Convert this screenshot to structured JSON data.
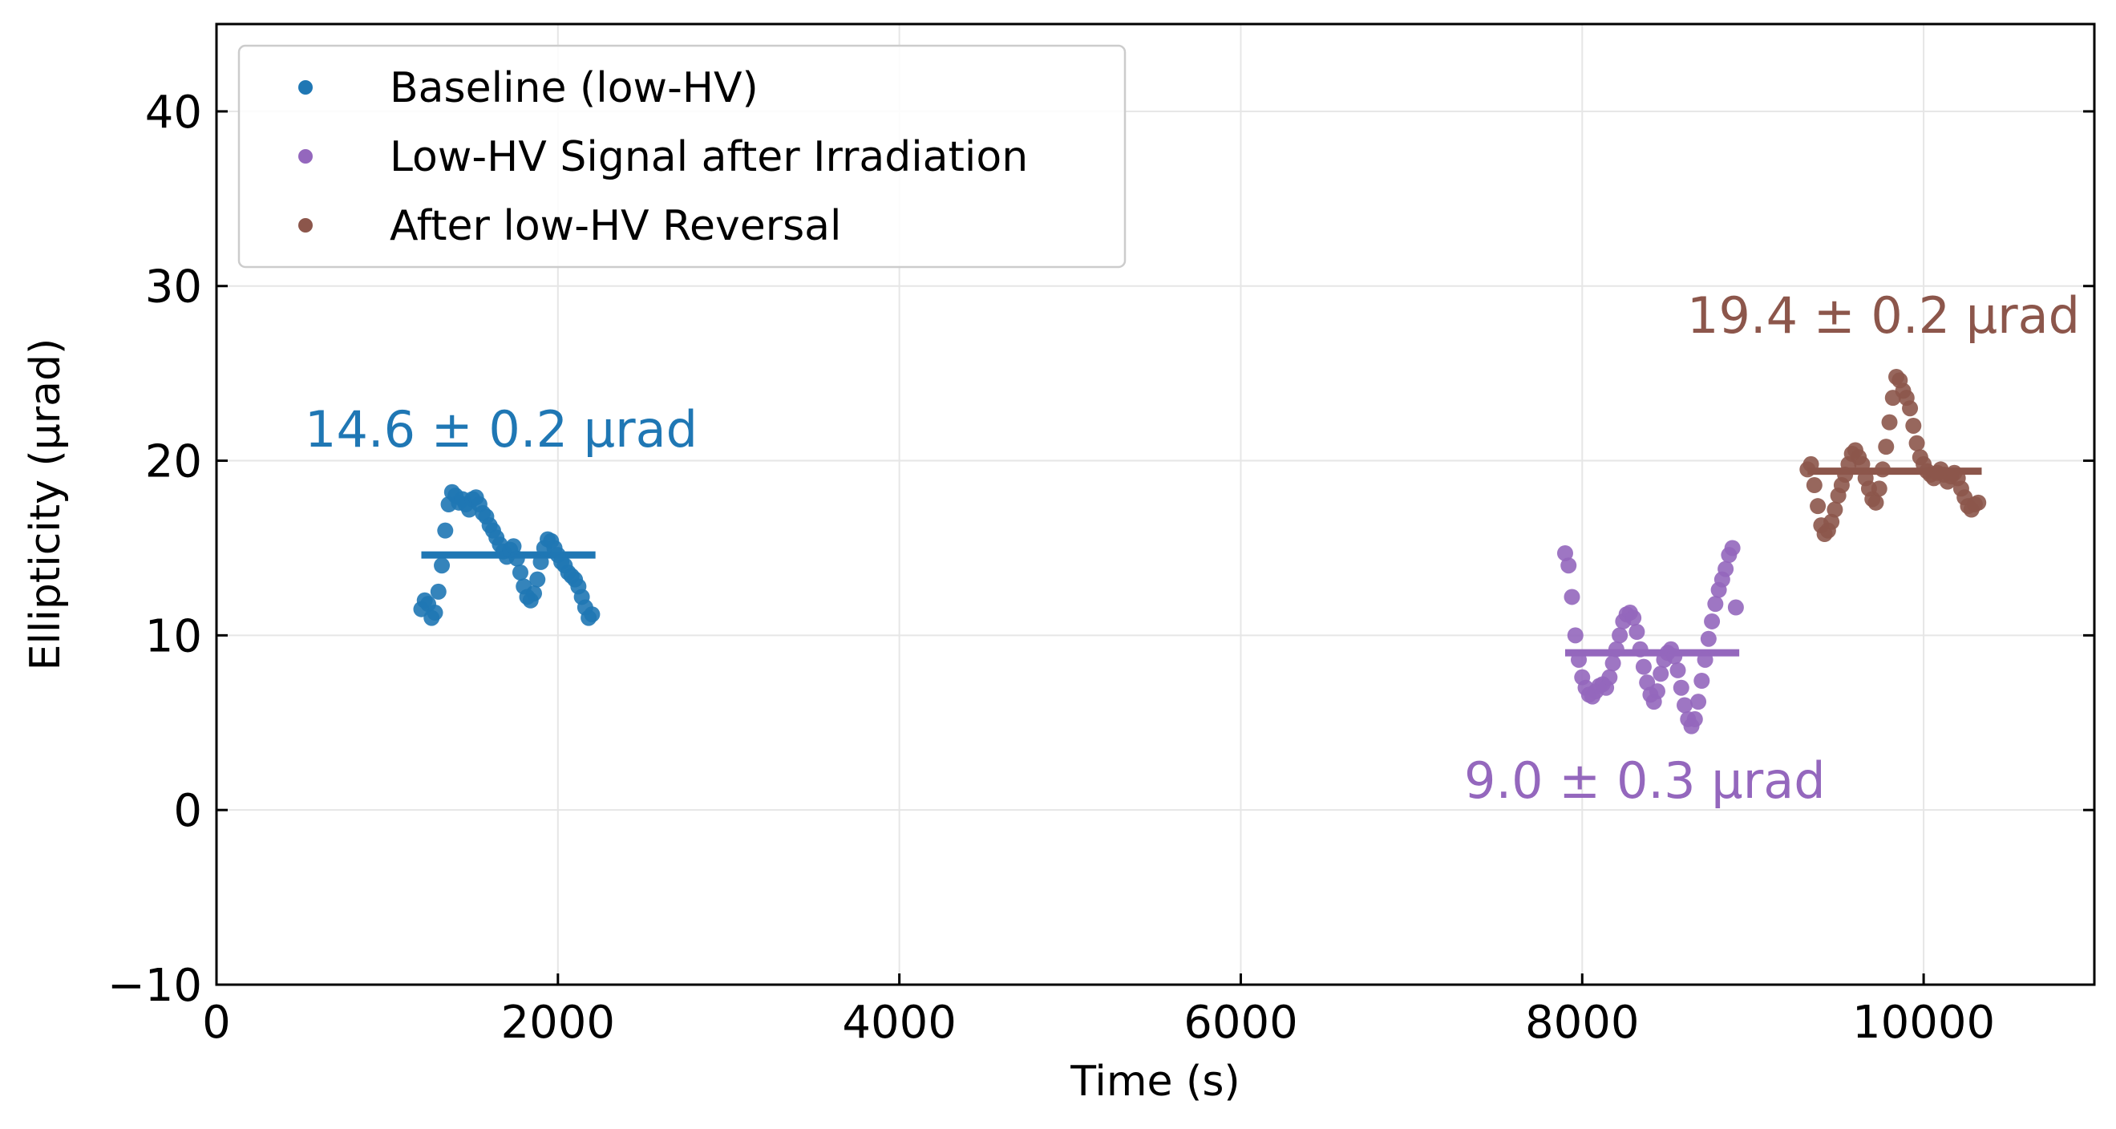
{
  "chart_data": {
    "type": "scatter",
    "xlabel": "Time (s)",
    "ylabel": "Ellipticity (μrad)",
    "xlim": [
      0,
      11000
    ],
    "ylim": [
      -10,
      45
    ],
    "xticks": [
      0,
      2000,
      4000,
      6000,
      8000,
      10000
    ],
    "yticks": [
      -10,
      0,
      10,
      20,
      30,
      40
    ],
    "grid": true,
    "legend_position": "top-left",
    "series": [
      {
        "name": "Baseline (low-HV)",
        "color": "#1f77b4",
        "mean": 14.6,
        "mean_x_range": [
          1200,
          2220
        ],
        "annotation": "14.6 ± 0.2 μrad",
        "x": [
          1200,
          1220,
          1240,
          1260,
          1280,
          1300,
          1320,
          1340,
          1360,
          1380,
          1400,
          1420,
          1440,
          1460,
          1480,
          1500,
          1520,
          1540,
          1560,
          1580,
          1600,
          1620,
          1640,
          1660,
          1680,
          1700,
          1720,
          1740,
          1760,
          1780,
          1800,
          1820,
          1840,
          1860,
          1880,
          1900,
          1920,
          1940,
          1960,
          1980,
          2000,
          2020,
          2040,
          2060,
          2080,
          2100,
          2120,
          2140,
          2160,
          2180,
          2200
        ],
        "y": [
          11.5,
          12.0,
          11.8,
          11.0,
          11.3,
          12.5,
          14.0,
          16.0,
          17.5,
          18.2,
          18.0,
          17.6,
          17.8,
          17.5,
          17.2,
          17.8,
          17.9,
          17.5,
          17.0,
          16.8,
          16.3,
          16.0,
          15.6,
          15.2,
          14.8,
          14.5,
          14.9,
          15.1,
          14.4,
          13.6,
          12.8,
          12.2,
          12.0,
          12.4,
          13.2,
          14.2,
          15.0,
          15.5,
          15.4,
          15.0,
          14.6,
          14.2,
          14.0,
          13.6,
          13.4,
          13.2,
          12.8,
          12.2,
          11.6,
          11.0,
          11.2
        ]
      },
      {
        "name": "Low-HV Signal after Irradiation",
        "color": "#9467bd",
        "mean": 9.0,
        "mean_x_range": [
          7900,
          8920
        ],
        "annotation": "9.0 ± 0.3 μrad",
        "x": [
          7900,
          7920,
          7940,
          7960,
          7980,
          8000,
          8020,
          8040,
          8060,
          8080,
          8100,
          8120,
          8140,
          8160,
          8180,
          8200,
          8220,
          8240,
          8260,
          8280,
          8300,
          8320,
          8340,
          8360,
          8380,
          8400,
          8420,
          8440,
          8460,
          8480,
          8500,
          8520,
          8540,
          8560,
          8580,
          8600,
          8620,
          8640,
          8660,
          8680,
          8700,
          8720,
          8740,
          8760,
          8780,
          8800,
          8820,
          8840,
          8860,
          8880,
          8900
        ],
        "y": [
          14.7,
          14.0,
          12.2,
          10.0,
          8.6,
          7.6,
          7.0,
          6.6,
          6.5,
          6.8,
          7.1,
          7.2,
          7.0,
          7.6,
          8.4,
          9.2,
          10.0,
          10.8,
          11.2,
          11.3,
          11.0,
          10.2,
          9.2,
          8.2,
          7.3,
          6.6,
          6.2,
          6.8,
          7.8,
          8.6,
          9.0,
          9.2,
          8.8,
          8.0,
          7.0,
          6.0,
          5.2,
          4.8,
          5.2,
          6.2,
          7.4,
          8.6,
          9.8,
          10.8,
          11.8,
          12.6,
          13.2,
          13.8,
          14.6,
          15.0,
          11.6
        ]
      },
      {
        "name": "After low-HV Reversal",
        "color": "#8c564b",
        "mean": 19.4,
        "mean_x_range": [
          9320,
          10340
        ],
        "annotation": "19.4 ± 0.2 μrad",
        "x": [
          9320,
          9340,
          9360,
          9380,
          9400,
          9420,
          9440,
          9460,
          9480,
          9500,
          9520,
          9540,
          9560,
          9580,
          9600,
          9620,
          9640,
          9660,
          9680,
          9700,
          9720,
          9740,
          9760,
          9780,
          9800,
          9820,
          9840,
          9860,
          9880,
          9900,
          9920,
          9940,
          9960,
          9980,
          10000,
          10020,
          10040,
          10060,
          10080,
          10100,
          10120,
          10140,
          10160,
          10180,
          10200,
          10220,
          10240,
          10260,
          10280,
          10300,
          10320
        ],
        "y": [
          19.5,
          19.8,
          18.6,
          17.4,
          16.3,
          15.8,
          16.0,
          16.5,
          17.2,
          18.0,
          18.6,
          19.2,
          19.8,
          20.4,
          20.6,
          20.2,
          19.8,
          19.0,
          18.4,
          17.8,
          17.6,
          18.4,
          19.5,
          20.8,
          22.2,
          23.6,
          24.8,
          24.6,
          24.0,
          23.6,
          23.0,
          22.0,
          21.0,
          20.2,
          19.8,
          19.4,
          19.2,
          19.0,
          19.3,
          19.5,
          19.2,
          18.8,
          19.1,
          19.3,
          19.0,
          18.4,
          17.9,
          17.4,
          17.2,
          17.5,
          17.6
        ]
      }
    ]
  }
}
